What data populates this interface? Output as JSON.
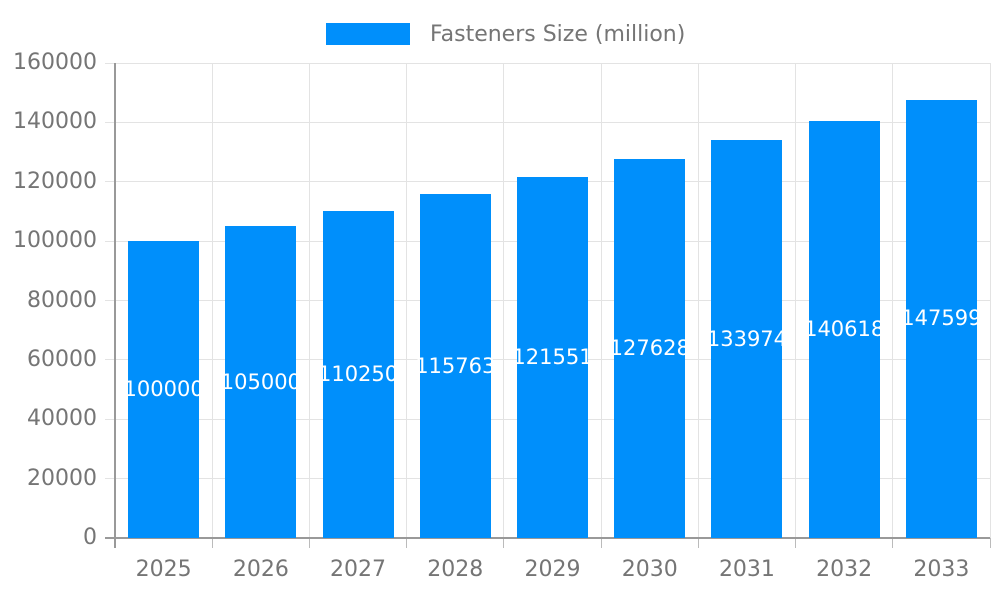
{
  "chart_data": {
    "type": "bar",
    "title": "",
    "legend": "Fasteners Size (million)",
    "legend_position": "top",
    "categories": [
      "2025",
      "2026",
      "2027",
      "2028",
      "2029",
      "2030",
      "2031",
      "2032",
      "2033"
    ],
    "series": [
      {
        "name": "Fasteners Size (million)",
        "values": [
          100000,
          105000,
          110250,
          115763,
          121551,
          127628,
          133974,
          140618,
          147599
        ]
      }
    ],
    "bar_value_labels": [
      "100000",
      "105000",
      "110250",
      "115763",
      "121551",
      "127628",
      "133974",
      "140618",
      "147599"
    ],
    "xlabel": "",
    "ylabel": "",
    "ylim": [
      0,
      160000
    ],
    "y_ticks": [
      0,
      20000,
      40000,
      60000,
      80000,
      100000,
      120000,
      140000,
      160000
    ],
    "y_tick_labels": [
      "0",
      "20000",
      "40000",
      "60000",
      "80000",
      "100000",
      "120000",
      "140000",
      "160000"
    ],
    "grid": "horizontal and vertical category-boundary gridlines on",
    "colors": {
      "bar": "#008FFB",
      "bar_value_text": "#ffffff",
      "axis_text": "#757575",
      "gridline": "#e3e3e3",
      "axis_line": "#999999",
      "tick": "#bbbbbb",
      "background": "#ffffff"
    }
  }
}
